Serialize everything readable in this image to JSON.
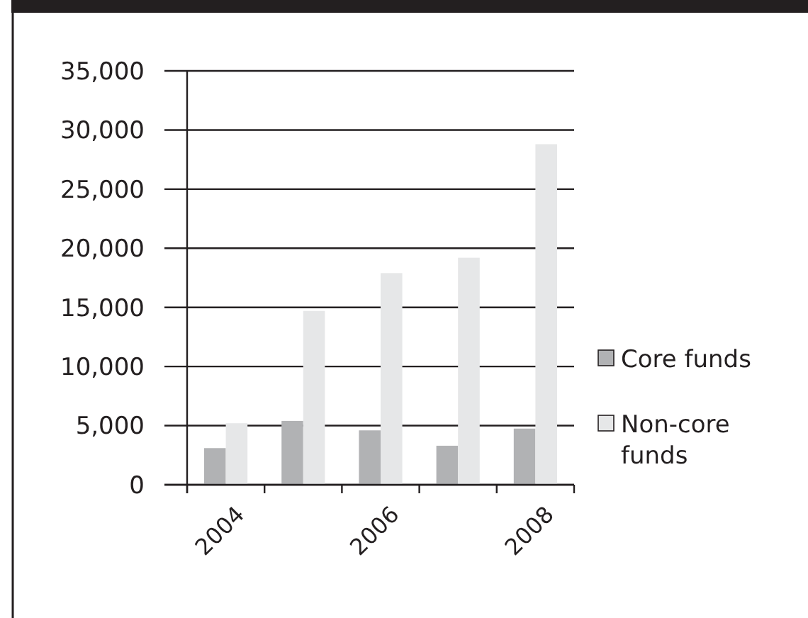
{
  "chart_data": {
    "type": "bar",
    "categories": [
      "2004",
      null,
      "2006",
      null,
      "2008"
    ],
    "series": [
      {
        "name": "Core funds",
        "color": "#b1b2b4",
        "values": [
          3100,
          5400,
          4600,
          3300,
          4750
        ]
      },
      {
        "name": "Non-core funds",
        "color": "#e6e7e8",
        "values": [
          5200,
          14700,
          17900,
          19200,
          28800
        ]
      }
    ],
    "ylim": [
      0,
      35000
    ],
    "yticks": [
      {
        "value": 0,
        "label": "0"
      },
      {
        "value": 5000,
        "label": "5,000"
      },
      {
        "value": 10000,
        "label": "10,000"
      },
      {
        "value": 15000,
        "label": "15,000"
      },
      {
        "value": 20000,
        "label": "20,000"
      },
      {
        "value": 25000,
        "label": "25,000"
      },
      {
        "value": 30000,
        "label": "30,000"
      },
      {
        "value": 35000,
        "label": "35,000"
      }
    ],
    "grid": "y",
    "legend": "right"
  }
}
